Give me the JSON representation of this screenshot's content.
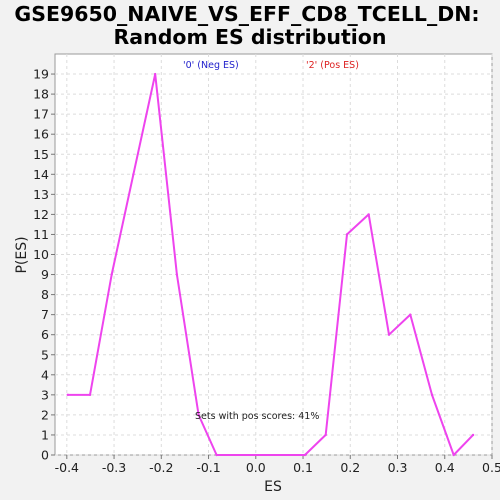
{
  "chart_data": {
    "type": "line",
    "title": "GSE9650_NAIVE_VS_EFF_CD8_TCELL_DN: Random ES distribution",
    "title_lines": [
      "GSE9650_NAIVE_VS_EFF_CD8_TCELL_DN:",
      "Random ES distribution"
    ],
    "xlabel": "ES",
    "ylabel": "P(ES)",
    "xlim": [
      -0.425,
      0.5
    ],
    "ylim": [
      0,
      20
    ],
    "x_ticks": [
      -0.4,
      -0.3,
      -0.2,
      -0.1,
      0.0,
      0.1,
      0.2,
      0.3,
      0.4,
      0.5
    ],
    "x_tick_labels": [
      "-0.4",
      "-0.3",
      "-0.2",
      "-0.1",
      "0.0",
      "0.1",
      "0.2",
      "0.3",
      "0.4",
      "0.5"
    ],
    "y_ticks": [
      0,
      1,
      2,
      3,
      4,
      5,
      6,
      7,
      8,
      9,
      10,
      11,
      12,
      13,
      14,
      15,
      16,
      17,
      18,
      19
    ],
    "y_tick_labels": [
      "0",
      "1",
      "2",
      "3",
      "4",
      "5",
      "6",
      "7",
      "8",
      "9",
      "10",
      "11",
      "12",
      "13",
      "14",
      "15",
      "16",
      "17",
      "18",
      "19"
    ],
    "grid": true,
    "series": [
      {
        "color": "#ee44ee",
        "x": [
          -0.398,
          -0.351,
          -0.305,
          -0.259,
          -0.213,
          -0.167,
          -0.121,
          -0.083,
          0.104,
          0.148,
          0.193,
          0.239,
          0.282,
          0.327,
          0.373,
          0.419,
          0.46
        ],
        "y": [
          3,
          3,
          9,
          14,
          19,
          9,
          2,
          0,
          0,
          1,
          11,
          12,
          6,
          7,
          3,
          0,
          1
        ]
      }
    ],
    "legend": [
      {
        "text": "'0' (Neg ES)",
        "color": "#2222cc"
      },
      {
        "text": "'2' (Pos ES)",
        "color": "#dd2222"
      }
    ],
    "annotation": "Sets with pos scores: 41%"
  }
}
